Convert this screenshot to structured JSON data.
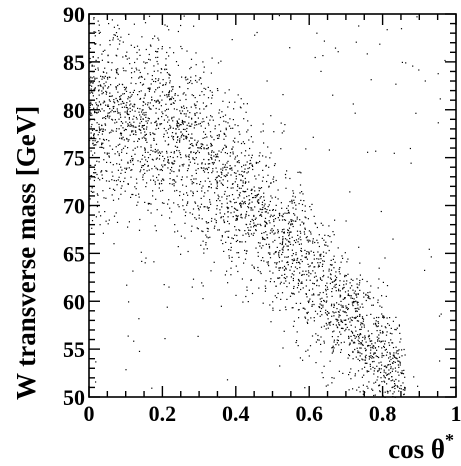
{
  "chart_data": {
    "type": "scatter",
    "title": "",
    "xlabel": "cos θ*",
    "xlabel_main": "cos θ",
    "xlabel_sup": "*",
    "ylabel": "W transverse mass  [GeV]",
    "xlim": [
      0,
      1
    ],
    "ylim": [
      50,
      90
    ],
    "x_ticks": [
      0,
      0.2,
      0.4,
      0.6,
      0.8,
      1
    ],
    "x_tick_labels": [
      "0",
      "0.2",
      "0.4",
      "0.6",
      "0.8",
      "1"
    ],
    "y_ticks": [
      50,
      55,
      60,
      65,
      70,
      75,
      80,
      85,
      90
    ],
    "y_tick_labels": [
      "50",
      "55",
      "60",
      "65",
      "70",
      "75",
      "80",
      "85",
      "90"
    ],
    "grid": false,
    "legend": "none",
    "series": [
      {
        "marker_color": "#000000",
        "approx_points": 3200,
        "trend_points": [
          {
            "x": 0.0,
            "y": 80
          },
          {
            "x": 0.1,
            "y": 79.4
          },
          {
            "x": 0.2,
            "y": 77.8
          },
          {
            "x": 0.3,
            "y": 75.2
          },
          {
            "x": 0.4,
            "y": 71.8
          },
          {
            "x": 0.5,
            "y": 67.6
          },
          {
            "x": 0.6,
            "y": 63.2
          },
          {
            "x": 0.7,
            "y": 58.5
          },
          {
            "x": 0.8,
            "y": 53.5
          }
        ]
      }
    ]
  }
}
